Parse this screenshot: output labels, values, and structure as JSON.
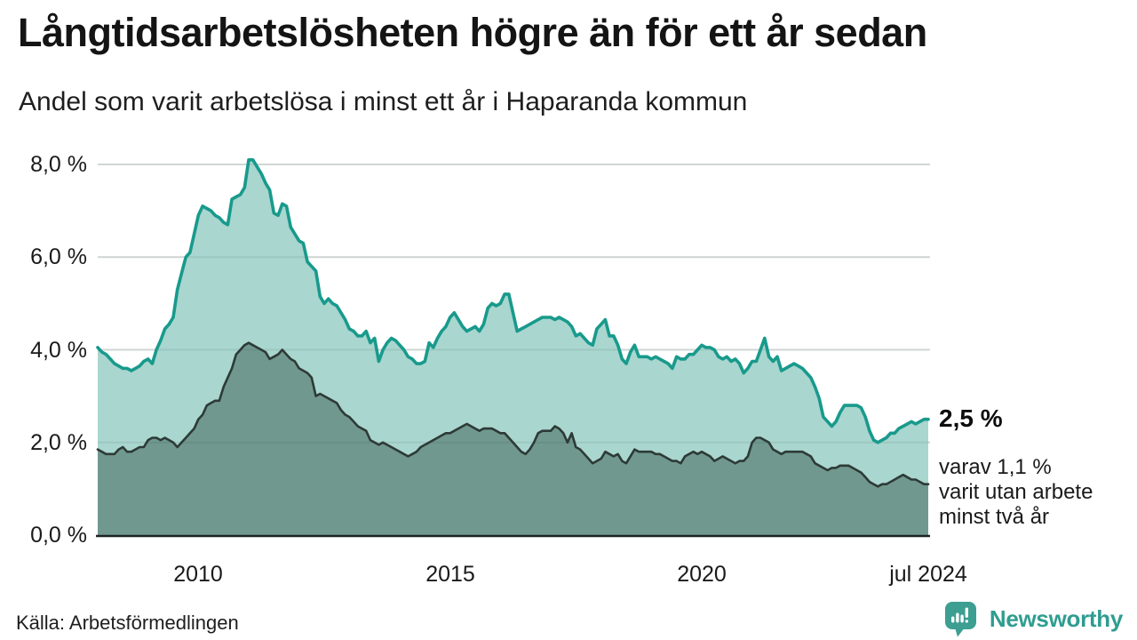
{
  "header": {
    "title": "Långtidsarbetslösheten högre än för ett år sedan",
    "subtitle": "Andel som varit arbetslösa i minst ett år i Haparanda kommun"
  },
  "chart_data": {
    "type": "area",
    "title": "Långtidsarbetslösheten högre än för ett år sedan",
    "subtitle": "Andel som varit arbetslösa i minst ett år i Haparanda kommun",
    "unit": "%",
    "region": "Haparanda kommun",
    "x_axis": {
      "start": "2008-01",
      "end": "2024-07",
      "frequency": "monthly",
      "tick_labels": [
        "2010",
        "2015",
        "2020",
        "jul 2024"
      ],
      "tick_month_indices": [
        24,
        84,
        144,
        198
      ]
    },
    "y_axis": {
      "tick_labels_desc": [
        "8,0 %",
        "6,0 %",
        "4,0 %",
        "2,0 %",
        "0,0 %"
      ],
      "tick_values_desc": [
        8,
        6,
        4,
        2,
        0
      ],
      "range": [
        0,
        8.5
      ],
      "grid": true
    },
    "legend_position": "annotation-right",
    "series": [
      {
        "name": "Arbetslösa minst ett år (totalt)",
        "end_label": "2,5 %",
        "end_value": 2.5,
        "line_color": "#189a8c",
        "fill_color": "#a9d6cf",
        "values": [
          4.05,
          3.95,
          3.9,
          3.8,
          3.7,
          3.65,
          3.6,
          3.6,
          3.55,
          3.6,
          3.65,
          3.75,
          3.8,
          3.7,
          4.0,
          4.2,
          4.45,
          4.55,
          4.7,
          5.3,
          5.65,
          6.0,
          6.1,
          6.5,
          6.9,
          7.1,
          7.05,
          7.0,
          6.9,
          6.85,
          6.75,
          6.7,
          7.25,
          7.3,
          7.35,
          7.5,
          8.1,
          8.1,
          7.95,
          7.8,
          7.6,
          7.45,
          6.95,
          6.9,
          7.15,
          7.1,
          6.65,
          6.5,
          6.35,
          6.3,
          5.9,
          5.8,
          5.7,
          5.15,
          5.0,
          5.1,
          5.0,
          4.95,
          4.8,
          4.65,
          4.45,
          4.4,
          4.3,
          4.3,
          4.4,
          4.15,
          4.25,
          3.75,
          4.0,
          4.15,
          4.25,
          4.2,
          4.1,
          4.0,
          3.85,
          3.8,
          3.7,
          3.7,
          3.75,
          4.15,
          4.05,
          4.25,
          4.4,
          4.5,
          4.7,
          4.8,
          4.65,
          4.5,
          4.4,
          4.45,
          4.5,
          4.4,
          4.55,
          4.9,
          5.0,
          4.95,
          5.0,
          5.2,
          5.2,
          4.8,
          4.4,
          4.45,
          4.5,
          4.55,
          4.6,
          4.65,
          4.7,
          4.7,
          4.7,
          4.65,
          4.7,
          4.65,
          4.6,
          4.5,
          4.3,
          4.35,
          4.25,
          4.15,
          4.1,
          4.45,
          4.55,
          4.65,
          4.3,
          4.3,
          4.1,
          3.8,
          3.7,
          3.95,
          4.1,
          3.85,
          3.85,
          3.85,
          3.8,
          3.85,
          3.8,
          3.75,
          3.7,
          3.6,
          3.85,
          3.8,
          3.8,
          3.9,
          3.9,
          4.0,
          4.1,
          4.05,
          4.05,
          4.0,
          3.85,
          3.8,
          3.85,
          3.75,
          3.8,
          3.7,
          3.5,
          3.6,
          3.75,
          3.75,
          4.0,
          4.25,
          3.85,
          3.75,
          3.85,
          3.55,
          3.6,
          3.65,
          3.7,
          3.65,
          3.6,
          3.5,
          3.4,
          3.2,
          2.95,
          2.55,
          2.45,
          2.35,
          2.45,
          2.65,
          2.8,
          2.8,
          2.8,
          2.8,
          2.75,
          2.55,
          2.25,
          2.05,
          2.0,
          2.05,
          2.1,
          2.2,
          2.2,
          2.3,
          2.35,
          2.4,
          2.45,
          2.4,
          2.45,
          2.5,
          2.5
        ]
      },
      {
        "name": "Varav utan arbete minst två år",
        "end_value": 1.1,
        "line_color": "#2d3a36",
        "fill_color": "#70988f",
        "values": [
          1.85,
          1.8,
          1.75,
          1.75,
          1.75,
          1.85,
          1.9,
          1.8,
          1.8,
          1.85,
          1.9,
          1.9,
          2.05,
          2.1,
          2.1,
          2.05,
          2.1,
          2.05,
          2.0,
          1.9,
          2.0,
          2.1,
          2.2,
          2.3,
          2.5,
          2.6,
          2.8,
          2.85,
          2.9,
          2.9,
          3.2,
          3.4,
          3.6,
          3.9,
          4.0,
          4.1,
          4.15,
          4.1,
          4.05,
          4.0,
          3.95,
          3.8,
          3.85,
          3.9,
          4.0,
          3.9,
          3.8,
          3.75,
          3.6,
          3.55,
          3.5,
          3.4,
          3.0,
          3.05,
          3.0,
          2.95,
          2.9,
          2.85,
          2.7,
          2.6,
          2.55,
          2.45,
          2.35,
          2.3,
          2.25,
          2.05,
          2.0,
          1.95,
          2.0,
          1.95,
          1.9,
          1.85,
          1.8,
          1.75,
          1.7,
          1.75,
          1.8,
          1.9,
          1.95,
          2.0,
          2.05,
          2.1,
          2.15,
          2.2,
          2.2,
          2.25,
          2.3,
          2.35,
          2.4,
          2.35,
          2.3,
          2.25,
          2.3,
          2.3,
          2.3,
          2.25,
          2.2,
          2.2,
          2.1,
          2.0,
          1.9,
          1.8,
          1.75,
          1.85,
          2.0,
          2.2,
          2.25,
          2.25,
          2.25,
          2.35,
          2.3,
          2.2,
          2.0,
          2.2,
          1.9,
          1.85,
          1.75,
          1.65,
          1.55,
          1.6,
          1.65,
          1.8,
          1.75,
          1.7,
          1.75,
          1.6,
          1.55,
          1.7,
          1.85,
          1.8,
          1.8,
          1.8,
          1.8,
          1.75,
          1.75,
          1.7,
          1.65,
          1.6,
          1.6,
          1.55,
          1.7,
          1.75,
          1.8,
          1.75,
          1.8,
          1.75,
          1.7,
          1.6,
          1.65,
          1.7,
          1.65,
          1.6,
          1.55,
          1.6,
          1.6,
          1.7,
          2.0,
          2.1,
          2.1,
          2.05,
          2.0,
          1.85,
          1.8,
          1.75,
          1.8,
          1.8,
          1.8,
          1.8,
          1.8,
          1.75,
          1.7,
          1.55,
          1.5,
          1.45,
          1.4,
          1.45,
          1.45,
          1.5,
          1.5,
          1.5,
          1.45,
          1.4,
          1.35,
          1.25,
          1.15,
          1.1,
          1.05,
          1.1,
          1.1,
          1.15,
          1.2,
          1.25,
          1.3,
          1.25,
          1.2,
          1.2,
          1.15,
          1.1,
          1.1
        ]
      }
    ]
  },
  "annotations": {
    "end_value_label": "2,5 %",
    "detail_lines": [
      "varav 1,1 %",
      "varit utan arbete",
      "minst två år"
    ]
  },
  "footer": {
    "source": "Källa: Arbetsförmedlingen",
    "brand": "Newsworthy"
  },
  "colors": {
    "accent_teal": "#189a8c",
    "light_fill": "#a9d6cf",
    "dark_fill": "#70988f",
    "dark_line": "#2d3a36",
    "grid": "#e2e4e4",
    "axis_baseline": "#1d2220",
    "brand_teal": "#2f9d90",
    "text": "#141414"
  }
}
